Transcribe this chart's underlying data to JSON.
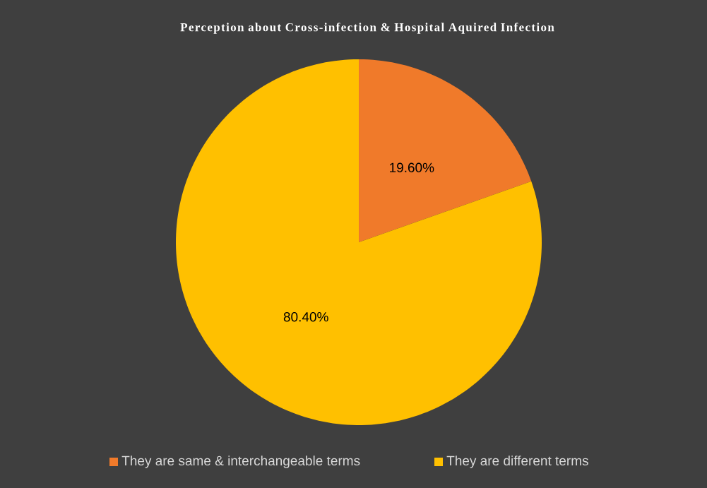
{
  "chart_data": {
    "type": "pie",
    "title": "Perception about Cross-infection & Hospital Aquired Infection",
    "categories": [
      "They are same & interchangeable terms",
      "They are different terms"
    ],
    "values": [
      19.6,
      80.4
    ],
    "colors": [
      "#f07a2a",
      "#ffc000"
    ],
    "value_labels": [
      "19.60%",
      "80.40%"
    ],
    "legend": "bottom"
  }
}
